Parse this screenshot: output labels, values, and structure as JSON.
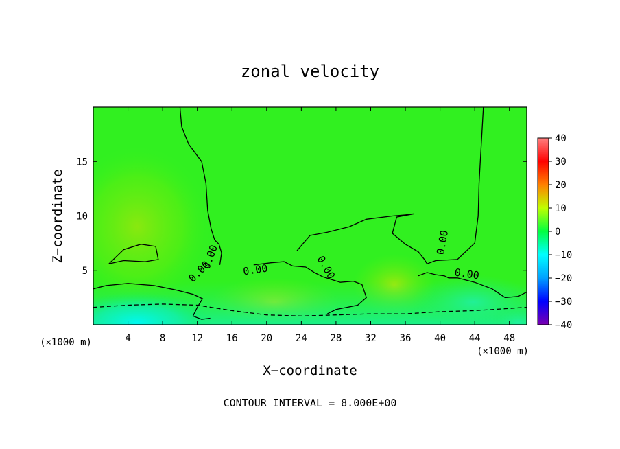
{
  "chart_data": {
    "type": "heatmap",
    "title": "zonal velocity",
    "xlabel": "X−coordinate",
    "ylabel": "Z−coordinate",
    "x_unit_label": "(×1000 m)",
    "x_unit_label_right": "(×1000 m)",
    "xlim": [
      0,
      50
    ],
    "ylim": [
      0,
      20
    ],
    "x_ticks": [
      4,
      8,
      12,
      16,
      20,
      24,
      28,
      32,
      36,
      40,
      44,
      48
    ],
    "x_tick_labels": [
      "4",
      "8",
      "12",
      "16",
      "20",
      "24",
      "28",
      "32",
      "36",
      "40",
      "44",
      "48"
    ],
    "y_ticks": [
      5,
      10,
      15
    ],
    "y_tick_labels": [
      "5",
      "10",
      "15"
    ],
    "colorbar": {
      "min": -40,
      "max": 40,
      "ticks": [
        40,
        30,
        20,
        10,
        0,
        -10,
        -20,
        -30,
        -40
      ],
      "tick_labels": [
        "40",
        "30",
        "20",
        "10",
        "0",
        "−10",
        "−20",
        "−30",
        "−40"
      ],
      "colors": [
        "#7b00b0",
        "#0000ff",
        "#00a0ff",
        "#00ffff",
        "#00ff40",
        "#60ff00",
        "#ffff00",
        "#ff8000",
        "#ff0000",
        "#ff8080"
      ]
    },
    "field_value_range": [
      -20,
      10
    ],
    "contour_interval": 8.0,
    "contour_labels": [
      "0.00",
      "0.00",
      "0.00",
      "0.00",
      "0.00",
      "0.00"
    ],
    "contour_levels": [
      {
        "value": 8,
        "style": "solid",
        "x": [
          1.8,
          3.5,
          5.5,
          7.2,
          7.5,
          6.0,
          3.5,
          1.8
        ],
        "y": [
          5.6,
          6.9,
          7.4,
          7.2,
          6.0,
          5.8,
          5.9,
          5.6
        ]
      },
      {
        "value": -8,
        "style": "dashed",
        "x": [
          0,
          4,
          8,
          12,
          16,
          20,
          24,
          28,
          32,
          36,
          40,
          44,
          48,
          50
        ],
        "y": [
          1.6,
          1.8,
          1.9,
          1.8,
          1.3,
          0.9,
          0.8,
          0.9,
          1.0,
          1.0,
          1.2,
          1.3,
          1.5,
          1.6
        ]
      },
      {
        "value": 0,
        "style": "solid",
        "x": [
          10,
          10.2,
          11.0,
          12.5,
          13.0,
          13.2,
          13.6,
          14.0,
          14.5,
          14.8,
          14.6
        ],
        "y": [
          20,
          18.2,
          16.6,
          15.0,
          13.0,
          10.5,
          8.8,
          7.8,
          7.4,
          6.6,
          5.5
        ]
      },
      {
        "value": 0,
        "style": "solid",
        "x": [
          0,
          1.5,
          4.0,
          7.0,
          9.5,
          11.5,
          12.6,
          12.0,
          11.5,
          12.5,
          13.5
        ],
        "y": [
          3.3,
          3.6,
          3.8,
          3.6,
          3.2,
          2.8,
          2.4,
          1.6,
          0.8,
          0.5,
          0.6
        ]
      },
      {
        "value": 0,
        "style": "solid",
        "x": [
          23.5,
          25.0,
          27.0,
          29.5,
          31.5,
          34.5,
          36.0,
          37.0,
          35.0,
          34.5,
          36.0,
          37.5,
          38.2,
          38.5,
          39.5,
          42.0,
          44.0,
          44.4,
          44.5,
          45.0
        ],
        "y": [
          6.8,
          8.2,
          8.5,
          9.0,
          9.7,
          10.0,
          10.1,
          10.2,
          9.9,
          8.4,
          7.4,
          6.7,
          6.0,
          5.6,
          5.9,
          6.0,
          7.5,
          10.0,
          13.0,
          20.0
        ]
      },
      {
        "value": 0,
        "style": "solid",
        "x": [
          18.5,
          20.5,
          22.0,
          23.0,
          24.5,
          25.5,
          26.5,
          28.5,
          30.0,
          31.0,
          31.5,
          30.5,
          28.0,
          27.0
        ],
        "y": [
          5.5,
          5.7,
          5.8,
          5.4,
          5.3,
          4.8,
          4.4,
          3.9,
          4.0,
          3.7,
          2.5,
          1.8,
          1.4,
          1.0
        ]
      },
      {
        "value": 0,
        "style": "solid",
        "x": [
          37.5,
          38.5,
          39.5,
          40.5,
          41.0,
          42.0,
          44.0,
          46.0,
          47.5,
          49.0,
          50.0
        ],
        "y": [
          4.5,
          4.8,
          4.6,
          4.5,
          4.3,
          4.3,
          3.9,
          3.3,
          2.5,
          2.6,
          3.0
        ]
      }
    ],
    "grid": false,
    "legend": "colorbar-right"
  },
  "footer": {
    "contour_interval_text": "CONTOUR INTERVAL = 8.000E+00"
  }
}
